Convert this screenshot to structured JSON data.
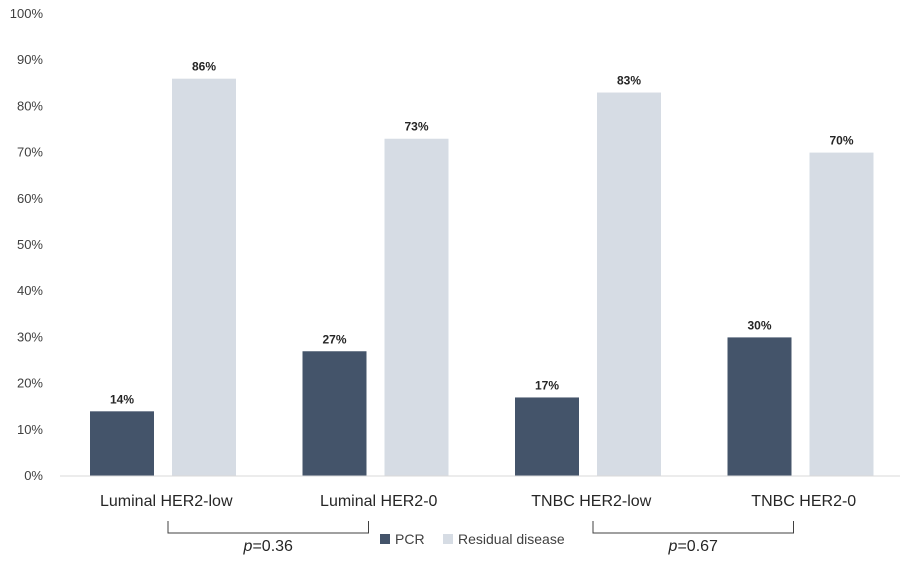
{
  "chart_data": {
    "type": "bar",
    "title": "",
    "xlabel": "",
    "ylabel": "",
    "ylim": [
      0,
      100
    ],
    "yticks": [
      0,
      10,
      20,
      30,
      40,
      50,
      60,
      70,
      80,
      90,
      100
    ],
    "ytick_labels": [
      "0%",
      "10%",
      "20%",
      "30%",
      "40%",
      "50%",
      "60%",
      "70%",
      "80%",
      "90%",
      "100%"
    ],
    "categories": [
      "Luminal HER2-low",
      "Luminal HER2-0",
      "TNBC HER2-low",
      "TNBC HER2-0"
    ],
    "series": [
      {
        "name": "PCR",
        "values": [
          14,
          27,
          17,
          30
        ],
        "labels": [
          "14%",
          "27%",
          "17%",
          "30%"
        ],
        "color": "#44546a"
      },
      {
        "name": "Residual disease",
        "values": [
          86,
          73,
          83,
          70
        ],
        "labels": [
          "86%",
          "73%",
          "83%",
          "70%"
        ],
        "color": "#d6dce4"
      }
    ],
    "grid": false,
    "legend_position": "bottom",
    "annotations": [
      {
        "between": [
          "Luminal HER2-low",
          "Luminal HER2-0"
        ],
        "prefix": "p",
        "text": "=0.36"
      },
      {
        "between": [
          "TNBC HER2-low",
          "TNBC HER2-0"
        ],
        "prefix": "p",
        "text": "=0.67"
      }
    ]
  }
}
